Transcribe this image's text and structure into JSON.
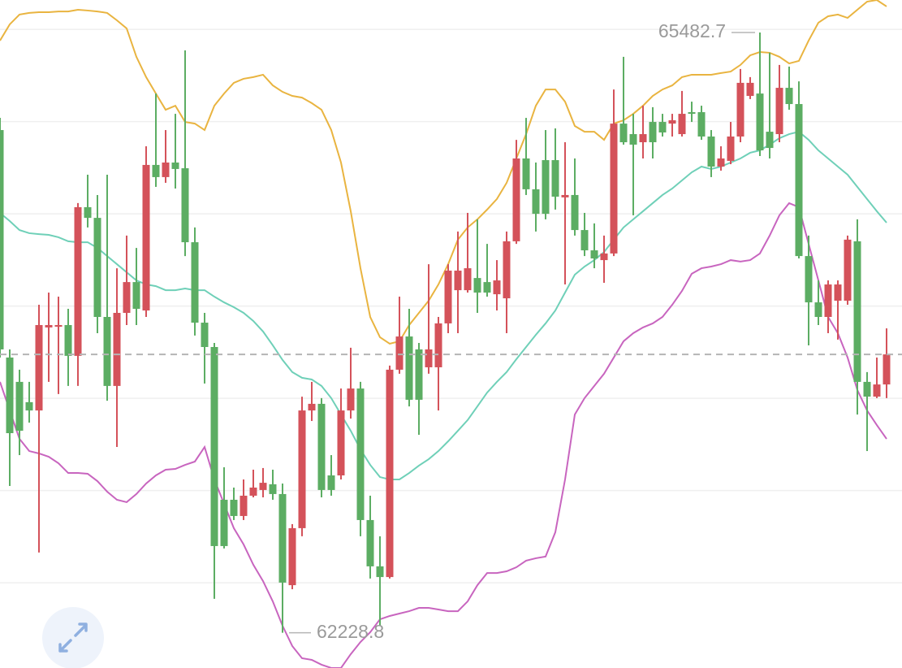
{
  "chart_data": {
    "type": "candlestick",
    "ylim": [
      62038,
      65659
    ],
    "grid_lines": [
      65500,
      65000,
      64500,
      64000,
      63500,
      63000,
      62500
    ],
    "grid": true,
    "up_color": "#d4525a",
    "down_color": "#5cad63",
    "open": [
      64954,
      63721,
      63589,
      63479,
      63434,
      63884,
      63888,
      63897,
      63730,
      64536,
      64478,
      63941,
      63567,
      63963,
      64130,
      63976,
      64765,
      64699,
      64778,
      64747,
      64346,
      63910,
      63778,
      62950,
      62950,
      62862,
      62972,
      63003,
      63034,
      62981,
      62487,
      62796,
      63434,
      63470,
      63082,
      63082,
      63434,
      63553,
      62840,
      62589,
      62531,
      63655,
      63835,
      63765,
      63668,
      63668,
      63906,
      64086,
      64086,
      64152,
      64130,
      64064,
      64042,
      64351,
      64800,
      64633,
      64791,
      64791,
      64589,
      64602,
      64412,
      64302,
      64249,
      64285,
      64989,
      64932,
      64888,
      64998,
      64998,
      64989,
      64932,
      65051,
      65051,
      64919,
      64756,
      64787,
      64919,
      65139,
      65152,
      64945,
      64932,
      65183,
      65095,
      64271,
      64020,
      63941,
      64029,
      64029,
      64351,
      63589,
      63509,
      63575
    ],
    "high": [
      65020,
      63765,
      63655,
      63589,
      64007,
      64073,
      64051,
      63985,
      64558,
      64712,
      64602,
      64712,
      64205,
      64382,
      64315,
      64866,
      65152,
      64954,
      65042,
      65386,
      64426,
      63963,
      63800,
      63126,
      63016,
      63060,
      63113,
      63122,
      63113,
      63038,
      62818,
      63509,
      63589,
      63501,
      63192,
      63553,
      63774,
      63589,
      62972,
      62752,
      63677,
      64051,
      63985,
      63800,
      64227,
      63941,
      64227,
      64404,
      64505,
      64470,
      64337,
      64249,
      64404,
      64901,
      65020,
      64778,
      64954,
      64963,
      64888,
      64800,
      64505,
      64448,
      64382,
      65174,
      65351,
      65042,
      65086,
      65078,
      65042,
      65042,
      65166,
      65108,
      65086,
      64954,
      64866,
      64998,
      65285,
      65241,
      65482.7,
      65373,
      65307,
      65298,
      65218,
      64382,
      64139,
      64139,
      64139,
      64382,
      64470,
      63642,
      63721,
      63879
    ],
    "low": [
      63721,
      63025,
      63192,
      63368,
      62664,
      63589,
      63523,
      63567,
      63567,
      64426,
      63853,
      63487,
      63236,
      63897,
      63897,
      63941,
      64646,
      64668,
      64637,
      64271,
      63840,
      63580,
      62413,
      62686,
      62840,
      62840,
      62963,
      62963,
      62950,
      62228.8,
      62465,
      62752,
      63377,
      62963,
      62972,
      63060,
      63390,
      62752,
      62523,
      62267,
      62523,
      63633,
      63456,
      63302,
      63633,
      63434,
      63853,
      63853,
      64073,
      63963,
      64051,
      63976,
      63853,
      64337,
      64602,
      64404,
      64470,
      64523,
      64117,
      64382,
      64271,
      64205,
      64126,
      64271,
      64875,
      64492,
      64800,
      64800,
      64919,
      64919,
      64919,
      64998,
      64901,
      64699,
      64734,
      64769,
      64888,
      65122,
      64813,
      64800,
      64888,
      65064,
      64258,
      63787,
      63897,
      63853,
      63818,
      64007,
      63412,
      63214,
      63501,
      63501
    ],
    "close": [
      63765,
      63311,
      63324,
      63434,
      63897,
      63897,
      63897,
      63730,
      64536,
      64478,
      63941,
      63567,
      63963,
      64130,
      63985,
      64765,
      64699,
      64778,
      64743,
      64346,
      63910,
      63778,
      62699,
      62699,
      62862,
      62972,
      63016,
      63042,
      62981,
      62501,
      62796,
      63434,
      63470,
      63003,
      63003,
      63434,
      63553,
      62840,
      62589,
      62531,
      63655,
      63835,
      63492,
      63492,
      63765,
      63906,
      64192,
      64192,
      64205,
      64073,
      64073,
      64139,
      64351,
      64800,
      64633,
      64500,
      64500,
      64593,
      64602,
      64412,
      64302,
      64258,
      64285,
      64989,
      64888,
      64875,
      64932,
      64888,
      64941,
      65007,
      65042,
      65042,
      64919,
      64756,
      64800,
      64919,
      65210,
      65210,
      64844,
      64857,
      65183,
      65095,
      64271,
      64020,
      63941,
      64117,
      64117,
      64360,
      63589,
      63509,
      63575,
      63738
    ],
    "series": [
      {
        "color": "#e9b440",
        "values": [
          65439,
          65527,
          65580,
          65589,
          65593,
          65593,
          65597,
          65597,
          65606,
          65602,
          65597,
          65589,
          65549,
          65505,
          65351,
          65241,
          65152,
          65064,
          65086,
          64998,
          64989,
          64954,
          65086,
          65152,
          65210,
          65232,
          65241,
          65254,
          65196,
          65161,
          65139,
          65130,
          65100,
          65064,
          64954,
          64778,
          64514,
          64205,
          63941,
          63831,
          63796,
          63809,
          63897,
          63963,
          64029,
          64117,
          64227,
          64360,
          64426,
          64470,
          64523,
          64580,
          64668,
          64800,
          64932,
          65086,
          65174,
          65174,
          65108,
          64976,
          64945,
          64945,
          64901,
          64989,
          65007,
          65042,
          65086,
          65139,
          65174,
          65196,
          65241,
          65254,
          65254,
          65254,
          65263,
          65271,
          65307,
          65359,
          65377,
          65373,
          65351,
          65315,
          65329,
          65439,
          65536,
          65571,
          65580,
          65562,
          65606,
          65650,
          65659,
          65624
        ]
      },
      {
        "color": "#6fd0b8",
        "values": [
          64505,
          64461,
          64412,
          64395,
          64390,
          64386,
          64373,
          64351,
          64346,
          64346,
          64315,
          64271,
          64227,
          64183,
          64139,
          64117,
          64108,
          64086,
          64086,
          64095,
          64086,
          64086,
          64051,
          64020,
          63994,
          63963,
          63919,
          63862,
          63787,
          63708,
          63642,
          63611,
          63602,
          63567,
          63501,
          63412,
          63324,
          63223,
          63139,
          63073,
          63060,
          63060,
          63095,
          63135,
          63170,
          63214,
          63267,
          63324,
          63382,
          63456,
          63531,
          63589,
          63642,
          63712,
          63778,
          63844,
          63906,
          63976,
          64073,
          64170,
          64214,
          64249,
          64293,
          64360,
          64426,
          64470,
          64514,
          64558,
          64602,
          64637,
          64681,
          64725,
          64756,
          64743,
          64756,
          64778,
          64800,
          64831,
          64844,
          64875,
          64910,
          64932,
          64945,
          64901,
          64844,
          64800,
          64756,
          64712,
          64646,
          64580,
          64514,
          64452
        ]
      },
      {
        "color": "#c865bf",
        "values": [
          63589,
          63434,
          63280,
          63214,
          63201,
          63183,
          63148,
          63095,
          63095,
          63091,
          63051,
          62994,
          62950,
          62937,
          62981,
          63038,
          63082,
          63113,
          63117,
          63139,
          63157,
          63236,
          63060,
          62928,
          62796,
          62708,
          62598,
          62509,
          62399,
          62267,
          62157,
          62091,
          62082,
          62056,
          62038,
          62038,
          62113,
          62179,
          62232,
          62302,
          62320,
          62333,
          62346,
          62364,
          62364,
          62355,
          62346,
          62346,
          62399,
          62487,
          62553,
          62553,
          62562,
          62584,
          62620,
          62633,
          62642,
          62774,
          63060,
          63412,
          63501,
          63567,
          63633,
          63721,
          63809,
          63853,
          63884,
          63906,
          63941,
          64007,
          64082,
          64175,
          64205,
          64214,
          64227,
          64249,
          64241,
          64249,
          64285,
          64382,
          64492,
          64558,
          64536,
          64337,
          64139,
          63941,
          63853,
          63721,
          63545,
          63434,
          63355,
          63280
        ]
      }
    ]
  }
}
